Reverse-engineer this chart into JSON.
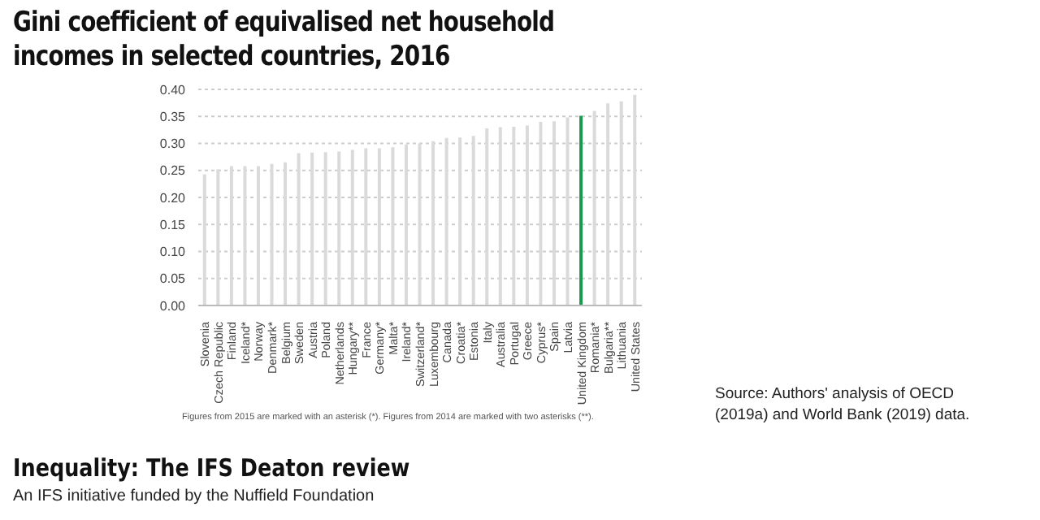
{
  "chart_data": {
    "type": "bar",
    "title": "Gini coefficient of equivalised net household incomes in selected countries, 2016",
    "categories": [
      "Slovenia",
      "Czech Republic",
      "Finland",
      "Iceland*",
      "Norway",
      "Denmark*",
      "Belgium",
      "Sweden",
      "Austria",
      "Poland",
      "Netherlands",
      "Hungary**",
      "France",
      "Germany*",
      "Malta*",
      "Ireland*",
      "Switzerland*",
      "Luxembourg",
      "Canada",
      "Croatia*",
      "Estonia",
      "Italy",
      "Australia",
      "Portugal",
      "Greece",
      "Cyprus*",
      "Spain",
      "Latvia",
      "United Kingdom",
      "Romania*",
      "Bulgaria**",
      "Lithuania",
      "United States"
    ],
    "values": [
      0.243,
      0.252,
      0.258,
      0.258,
      0.258,
      0.262,
      0.265,
      0.282,
      0.283,
      0.284,
      0.285,
      0.288,
      0.291,
      0.291,
      0.293,
      0.298,
      0.3,
      0.304,
      0.31,
      0.311,
      0.314,
      0.328,
      0.33,
      0.331,
      0.333,
      0.34,
      0.341,
      0.348,
      0.351,
      0.36,
      0.374,
      0.378,
      0.39
    ],
    "colors": [
      "#dadada",
      "#dadada",
      "#dadada",
      "#dadada",
      "#dadada",
      "#dadada",
      "#dadada",
      "#dadada",
      "#dadada",
      "#dadada",
      "#dadada",
      "#dadada",
      "#dadada",
      "#dadada",
      "#dadada",
      "#dadada",
      "#dadada",
      "#dadada",
      "#dadada",
      "#dadada",
      "#dadada",
      "#dadada",
      "#dadada",
      "#dadada",
      "#dadada",
      "#dadada",
      "#dadada",
      "#dadada",
      "#1b9a4f",
      "#dadada",
      "#dadada",
      "#dadada",
      "#dadada"
    ],
    "ylim": [
      0,
      0.4
    ],
    "yticks": [
      {
        "value": 0,
        "label": "0.00"
      },
      {
        "value": 0.05,
        "label": "0.05"
      },
      {
        "value": 0.1,
        "label": "0.10"
      },
      {
        "value": 0.15,
        "label": "0.15"
      },
      {
        "value": 0.2,
        "label": "0.20"
      },
      {
        "value": 0.25,
        "label": "0.25"
      },
      {
        "value": 0.3,
        "label": "0.30"
      },
      {
        "value": 0.35,
        "label": "0.35"
      },
      {
        "value": 0.4,
        "label": "0.40"
      }
    ],
    "grid": "y",
    "legend": false,
    "annotations": [
      "Figures from 2015 are marked with an asterisk (*). Figures from 2014 are marked with two asterisks (**).",
      "Source: Authors' analysis of OECD (2019a) and World Bank (2019) data.",
      "Inequality: The IFS Deaton review",
      "An IFS initiative funded by the Nuffield Foundation"
    ]
  }
}
